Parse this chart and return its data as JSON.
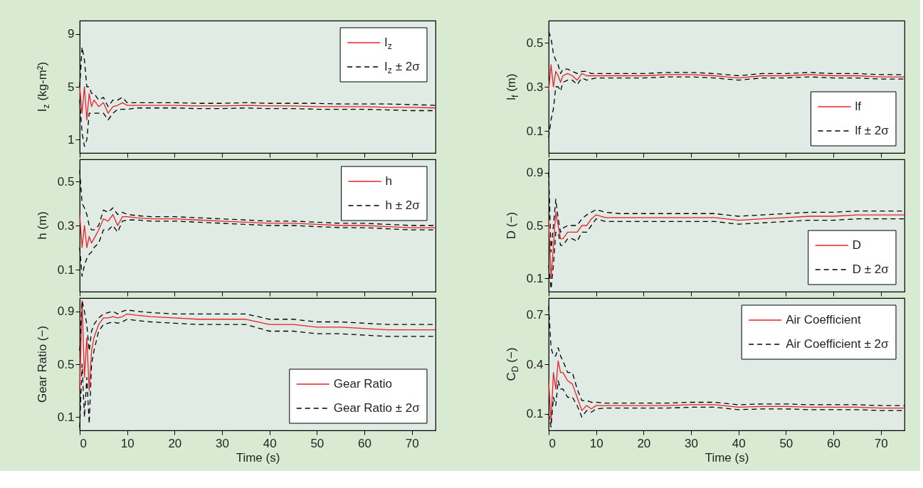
{
  "chart_data": [
    {
      "type": "line",
      "ylabel": "I$_{z}$ (kg-m²)",
      "xlim": [
        0,
        75
      ],
      "xticks": [
        0,
        10,
        20,
        30,
        40,
        50,
        60,
        70
      ],
      "ylim": [
        0,
        10
      ],
      "yticks": [
        1,
        5,
        9
      ],
      "tick_labels": "y",
      "legend": "top right",
      "x": [
        0,
        0.5,
        1,
        1.5,
        2,
        2.5,
        3,
        4,
        5,
        6,
        7,
        8,
        9,
        10,
        12,
        15,
        20,
        25,
        30,
        35,
        40,
        45,
        50,
        55,
        60,
        65,
        70,
        75
      ],
      "series": [
        {
          "name": "I$_{z}$",
          "color": "#e8222a",
          "line_style": "solid",
          "values": [
            5,
            3,
            5,
            2.5,
            4.5,
            3.5,
            4,
            3.5,
            3.8,
            3,
            3.5,
            3.6,
            3.8,
            3.6,
            3.6,
            3.6,
            3.6,
            3.55,
            3.55,
            3.6,
            3.55,
            3.55,
            3.5,
            3.5,
            3.5,
            3.45,
            3.45,
            3.4
          ]
        },
        {
          "name": "I$_{z}$ ± 2σ",
          "color": "#000000",
          "line_style": "dashed",
          "values": [
            5,
            8,
            7,
            5,
            5,
            4.5,
            4.5,
            4,
            4.2,
            3.5,
            4,
            4,
            4.2,
            3.8,
            3.8,
            3.8,
            3.8,
            3.75,
            3.75,
            3.8,
            3.75,
            3.75,
            3.75,
            3.7,
            3.7,
            3.7,
            3.65,
            3.6
          ]
        },
        {
          "color": "#000000",
          "line_style": "dashed",
          "values": [
            4,
            1.5,
            0.5,
            1,
            3,
            3,
            3,
            3,
            3,
            2.5,
            3,
            3.3,
            3.3,
            3.3,
            3.4,
            3.4,
            3.4,
            3.35,
            3.35,
            3.4,
            3.35,
            3.35,
            3.3,
            3.3,
            3.3,
            3.25,
            3.2,
            3.2
          ]
        }
      ]
    },
    {
      "type": "line",
      "ylabel": "h (m)",
      "xlim": [
        0,
        75
      ],
      "xticks": [
        0,
        10,
        20,
        30,
        40,
        50,
        60,
        70
      ],
      "ylim": [
        0,
        0.6
      ],
      "yticks": [
        0.1,
        0.3,
        0.5
      ],
      "tick_labels": "y",
      "legend": "top right",
      "x": [
        0,
        0.5,
        1,
        1.5,
        2,
        2.5,
        3,
        4,
        5,
        6,
        7,
        8,
        9,
        10,
        12,
        15,
        20,
        25,
        30,
        35,
        40,
        45,
        50,
        55,
        60,
        65,
        70,
        75
      ],
      "series": [
        {
          "name": "h",
          "color": "#e8222a",
          "line_style": "solid",
          "values": [
            0.35,
            0.2,
            0.3,
            0.2,
            0.25,
            0.22,
            0.24,
            0.28,
            0.33,
            0.32,
            0.35,
            0.3,
            0.34,
            0.34,
            0.335,
            0.33,
            0.33,
            0.325,
            0.32,
            0.315,
            0.31,
            0.31,
            0.305,
            0.3,
            0.3,
            0.295,
            0.29,
            0.29
          ]
        },
        {
          "name": "h ± 2σ",
          "color": "#000000",
          "line_style": "dashed",
          "values": [
            0.55,
            0.4,
            0.38,
            0.35,
            0.3,
            0.28,
            0.28,
            0.3,
            0.37,
            0.36,
            0.38,
            0.35,
            0.36,
            0.35,
            0.345,
            0.34,
            0.34,
            0.335,
            0.33,
            0.325,
            0.32,
            0.32,
            0.315,
            0.31,
            0.31,
            0.305,
            0.3,
            0.3
          ]
        },
        {
          "color": "#000000",
          "line_style": "dashed",
          "values": [
            0.2,
            0.07,
            0.12,
            0.15,
            0.17,
            0.18,
            0.2,
            0.22,
            0.28,
            0.28,
            0.3,
            0.27,
            0.32,
            0.325,
            0.325,
            0.32,
            0.32,
            0.315,
            0.31,
            0.305,
            0.3,
            0.3,
            0.295,
            0.29,
            0.29,
            0.285,
            0.28,
            0.28
          ]
        }
      ]
    },
    {
      "type": "line",
      "ylabel": "Gear Ratio (−)",
      "xlabel": "Time (s)",
      "xlim": [
        0,
        75
      ],
      "xticks": [
        0,
        10,
        20,
        30,
        40,
        50,
        60,
        70
      ],
      "ylim": [
        0,
        1
      ],
      "yticks": [
        0.1,
        0.5,
        0.9
      ],
      "legend": "bottom right",
      "x": [
        0,
        0.5,
        1,
        1.5,
        2,
        2.5,
        3,
        4,
        5,
        6,
        7,
        8,
        9,
        10,
        12,
        15,
        20,
        25,
        30,
        35,
        40,
        45,
        50,
        55,
        60,
        65,
        70,
        75
      ],
      "series": [
        {
          "name": "Gear Ratio",
          "color": "#e8222a",
          "line_style": "solid",
          "values": [
            0.3,
            0.98,
            0.4,
            0.7,
            0.3,
            0.6,
            0.7,
            0.8,
            0.85,
            0.85,
            0.86,
            0.85,
            0.86,
            0.88,
            0.87,
            0.86,
            0.85,
            0.84,
            0.84,
            0.84,
            0.8,
            0.8,
            0.78,
            0.78,
            0.77,
            0.76,
            0.76,
            0.76
          ]
        },
        {
          "name": "Gear Ratio ± 2σ",
          "color": "#000000",
          "line_style": "dashed",
          "values": [
            0.6,
            0.98,
            0.9,
            0.8,
            0.6,
            0.75,
            0.8,
            0.85,
            0.88,
            0.89,
            0.9,
            0.88,
            0.9,
            0.91,
            0.9,
            0.89,
            0.88,
            0.88,
            0.88,
            0.88,
            0.84,
            0.84,
            0.82,
            0.82,
            0.81,
            0.8,
            0.8,
            0.8
          ]
        },
        {
          "color": "#000000",
          "line_style": "dashed",
          "values": [
            0.02,
            0.5,
            0.1,
            0.4,
            0.05,
            0.5,
            0.6,
            0.75,
            0.8,
            0.81,
            0.82,
            0.81,
            0.82,
            0.84,
            0.83,
            0.82,
            0.81,
            0.8,
            0.8,
            0.8,
            0.75,
            0.75,
            0.73,
            0.73,
            0.72,
            0.71,
            0.71,
            0.71
          ]
        }
      ]
    },
    {
      "type": "line",
      "ylabel": "l$_{f}$ (m)",
      "xlim": [
        0,
        75
      ],
      "xticks": [
        0,
        10,
        20,
        30,
        40,
        50,
        60,
        70
      ],
      "ylim": [
        0,
        0.6
      ],
      "yticks": [
        0.1,
        0.3,
        0.5
      ],
      "tick_labels": "y",
      "legend": "bottom right",
      "x": [
        0,
        0.5,
        1,
        1.5,
        2,
        2.5,
        3,
        4,
        5,
        6,
        7,
        8,
        9,
        10,
        12,
        15,
        20,
        25,
        30,
        35,
        40,
        45,
        50,
        55,
        60,
        65,
        70,
        75
      ],
      "series": [
        {
          "name": "lf",
          "color": "#e8222a",
          "line_style": "solid",
          "values": [
            0.28,
            0.4,
            0.3,
            0.37,
            0.35,
            0.32,
            0.35,
            0.36,
            0.35,
            0.33,
            0.36,
            0.35,
            0.35,
            0.35,
            0.35,
            0.35,
            0.35,
            0.355,
            0.355,
            0.35,
            0.34,
            0.35,
            0.35,
            0.355,
            0.35,
            0.35,
            0.345,
            0.345
          ]
        },
        {
          "name": "lf ± 2σ",
          "color": "#000000",
          "line_style": "dashed",
          "values": [
            0.55,
            0.52,
            0.45,
            0.42,
            0.4,
            0.36,
            0.38,
            0.38,
            0.37,
            0.36,
            0.37,
            0.37,
            0.36,
            0.36,
            0.36,
            0.36,
            0.36,
            0.365,
            0.365,
            0.36,
            0.35,
            0.36,
            0.36,
            0.365,
            0.36,
            0.36,
            0.355,
            0.355
          ]
        },
        {
          "color": "#000000",
          "line_style": "dashed",
          "values": [
            0.07,
            0.15,
            0.2,
            0.3,
            0.3,
            0.28,
            0.32,
            0.33,
            0.33,
            0.31,
            0.34,
            0.33,
            0.335,
            0.34,
            0.34,
            0.34,
            0.34,
            0.345,
            0.345,
            0.34,
            0.33,
            0.34,
            0.34,
            0.345,
            0.34,
            0.34,
            0.335,
            0.335
          ]
        }
      ]
    },
    {
      "type": "line",
      "ylabel": "D (−)",
      "xlim": [
        0,
        75
      ],
      "xticks": [
        0,
        10,
        20,
        30,
        40,
        50,
        60,
        70
      ],
      "ylim": [
        0,
        1
      ],
      "yticks": [
        0.1,
        0.5,
        0.9
      ],
      "tick_labels": "y",
      "legend": "bottom right",
      "x": [
        0,
        0.5,
        1,
        1.5,
        2,
        2.5,
        3,
        4,
        5,
        6,
        7,
        8,
        9,
        10,
        12,
        15,
        20,
        25,
        30,
        35,
        40,
        45,
        50,
        55,
        60,
        65,
        70,
        75
      ],
      "series": [
        {
          "name": "D",
          "color": "#e8222a",
          "line_style": "solid",
          "values": [
            0.55,
            0.1,
            0.35,
            0.6,
            0.5,
            0.4,
            0.4,
            0.45,
            0.45,
            0.45,
            0.5,
            0.5,
            0.55,
            0.58,
            0.56,
            0.56,
            0.56,
            0.56,
            0.56,
            0.56,
            0.54,
            0.55,
            0.56,
            0.57,
            0.57,
            0.58,
            0.58,
            0.58
          ]
        },
        {
          "name": "D ± 2σ",
          "color": "#000000",
          "line_style": "dashed",
          "values": [
            0.9,
            0.3,
            0.5,
            0.7,
            0.55,
            0.45,
            0.48,
            0.5,
            0.5,
            0.5,
            0.55,
            0.58,
            0.6,
            0.62,
            0.6,
            0.59,
            0.59,
            0.59,
            0.59,
            0.59,
            0.57,
            0.58,
            0.59,
            0.6,
            0.6,
            0.61,
            0.61,
            0.61
          ]
        },
        {
          "color": "#000000",
          "line_style": "dashed",
          "values": [
            0.2,
            0.02,
            0.2,
            0.45,
            0.45,
            0.35,
            0.35,
            0.4,
            0.4,
            0.38,
            0.45,
            0.45,
            0.5,
            0.55,
            0.53,
            0.53,
            0.53,
            0.53,
            0.53,
            0.53,
            0.51,
            0.52,
            0.53,
            0.54,
            0.54,
            0.55,
            0.55,
            0.55
          ]
        }
      ]
    },
    {
      "type": "line",
      "ylabel": "C$_{D}$ (−)",
      "xlabel": "Time (s)",
      "xlim": [
        0,
        75
      ],
      "xticks": [
        0,
        10,
        20,
        30,
        40,
        50,
        60,
        70
      ],
      "ylim": [
        0,
        0.8
      ],
      "yticks": [
        0.1,
        0.4,
        0.7
      ],
      "legend": "top right",
      "x": [
        0,
        0.5,
        1,
        1.5,
        2,
        2.5,
        3,
        4,
        5,
        6,
        7,
        8,
        9,
        10,
        12,
        15,
        20,
        25,
        30,
        35,
        40,
        45,
        50,
        55,
        60,
        65,
        70,
        75
      ],
      "series": [
        {
          "name": "Air Coefficient",
          "color": "#e8222a",
          "line_style": "solid",
          "values": [
            0.3,
            0.05,
            0.35,
            0.25,
            0.42,
            0.35,
            0.35,
            0.3,
            0.28,
            0.2,
            0.12,
            0.15,
            0.13,
            0.15,
            0.15,
            0.15,
            0.15,
            0.15,
            0.155,
            0.155,
            0.14,
            0.145,
            0.145,
            0.14,
            0.14,
            0.14,
            0.135,
            0.135
          ]
        },
        {
          "name": "Air Coefficient ± 2σ",
          "color": "#000000",
          "line_style": "dashed",
          "values": [
            0.75,
            0.5,
            0.45,
            0.45,
            0.5,
            0.45,
            0.42,
            0.35,
            0.35,
            0.25,
            0.18,
            0.18,
            0.17,
            0.17,
            0.165,
            0.165,
            0.165,
            0.165,
            0.17,
            0.17,
            0.155,
            0.16,
            0.16,
            0.155,
            0.155,
            0.155,
            0.15,
            0.15
          ]
        },
        {
          "color": "#000000",
          "line_style": "dashed",
          "values": [
            0.1,
            0.02,
            0.2,
            0.15,
            0.3,
            0.25,
            0.25,
            0.2,
            0.2,
            0.15,
            0.08,
            0.12,
            0.11,
            0.13,
            0.135,
            0.135,
            0.135,
            0.135,
            0.14,
            0.14,
            0.125,
            0.13,
            0.13,
            0.125,
            0.125,
            0.125,
            0.12,
            0.12
          ]
        }
      ]
    }
  ]
}
